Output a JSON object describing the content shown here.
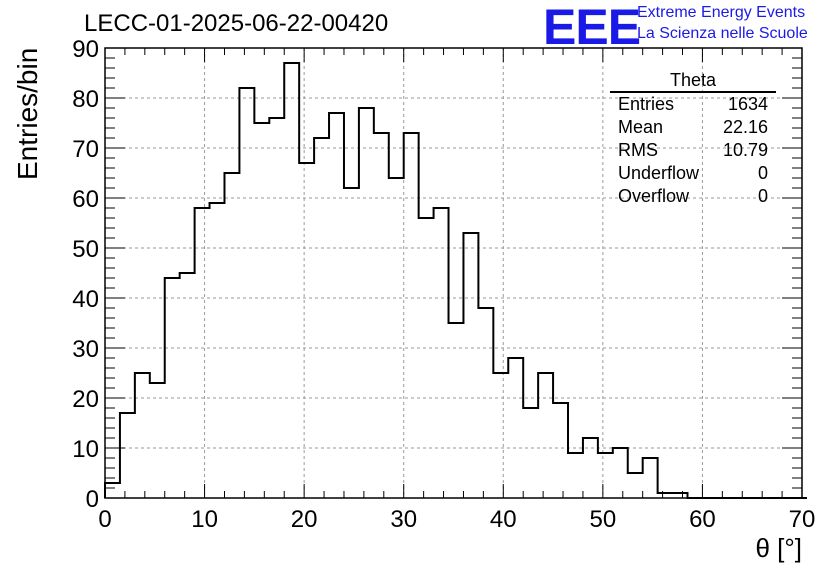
{
  "chart_data": {
    "type": "bar",
    "title": "LECC-01-2025-06-22-00420",
    "xlabel": "θ [°]",
    "ylabel": "Entries/bin",
    "xlim": [
      0,
      70
    ],
    "ylim": [
      0,
      90
    ],
    "bin_width": 1.5,
    "x_ticks": [
      0,
      10,
      20,
      30,
      40,
      50,
      60,
      70
    ],
    "y_ticks": [
      0,
      10,
      20,
      30,
      40,
      50,
      60,
      70,
      80,
      90
    ],
    "grid": true,
    "legend": "top-right stats box",
    "values": [
      3,
      17,
      25,
      23,
      44,
      45,
      58,
      59,
      65,
      82,
      75,
      76,
      87,
      67,
      72,
      77,
      62,
      78,
      73,
      64,
      73,
      56,
      58,
      35,
      53,
      38,
      25,
      28,
      18,
      25,
      19,
      9,
      12,
      9,
      10,
      5,
      8,
      1,
      1,
      0,
      0,
      0,
      0,
      0,
      0,
      0,
      0
    ]
  },
  "stats": {
    "title": "Theta",
    "rows": [
      {
        "label": "Entries",
        "value": "1634"
      },
      {
        "label": "Mean",
        "value": "22.16"
      },
      {
        "label": "RMS",
        "value": "10.79"
      },
      {
        "label": "Underflow",
        "value": "0"
      },
      {
        "label": "Overflow",
        "value": "0"
      }
    ]
  },
  "logo": {
    "mark": "EEE",
    "line1": "Extreme Energy Events",
    "line2": "La Scienza nelle Scuole",
    "color": "#1a1ae6"
  }
}
